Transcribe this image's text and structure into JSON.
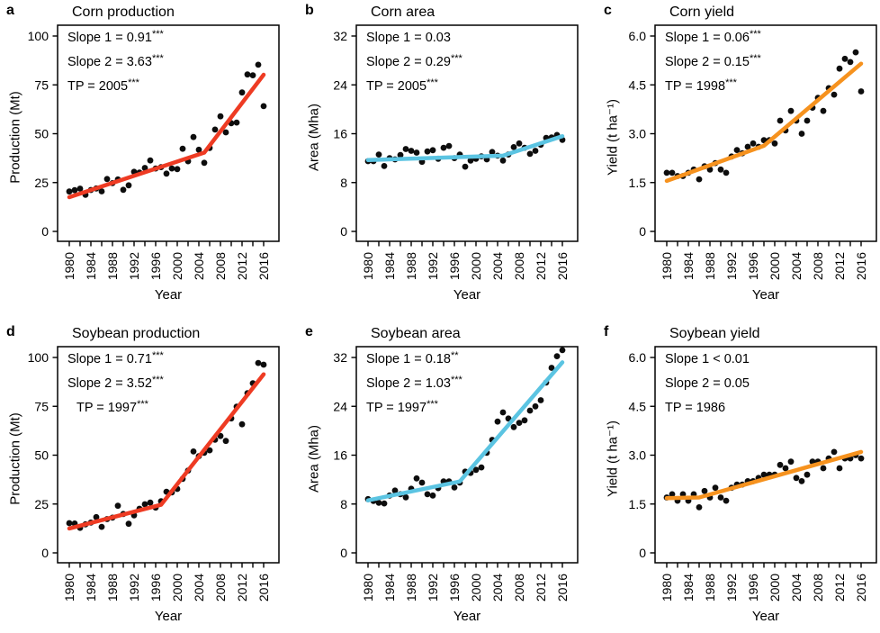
{
  "years": [
    1980,
    1981,
    1982,
    1983,
    1984,
    1985,
    1986,
    1987,
    1988,
    1989,
    1990,
    1991,
    1992,
    1993,
    1994,
    1995,
    1996,
    1997,
    1998,
    1999,
    2000,
    2001,
    2002,
    2003,
    2004,
    2005,
    2006,
    2007,
    2008,
    2009,
    2010,
    2011,
    2012,
    2013,
    2014,
    2015,
    2016
  ],
  "x_axis": {
    "label": "Year",
    "labeled_ticks": [
      1980,
      1984,
      1988,
      1992,
      1996,
      2000,
      2004,
      2008,
      2012,
      2016
    ],
    "minor_tick_step": 2,
    "xlim": [
      1980,
      2016
    ]
  },
  "colors": {
    "point": "#0d0d0d",
    "production_line": "#ee3b23",
    "area_line": "#5bc4e2",
    "yield_line": "#f6921e",
    "axis": "#000000"
  },
  "chart_data": [
    {
      "panel": "a",
      "type": "scatter",
      "title": "Corn production",
      "ylabel": "Production (Mt)",
      "xlabel": "Year",
      "ymax": 100,
      "yticks": [
        "0",
        "25",
        "50",
        "75",
        "100"
      ],
      "line_color": "#ee3b23",
      "annotations": [
        {
          "text": "Slope 1 = 0.91",
          "stars": "***",
          "indent": 0
        },
        {
          "text": "Slope 2 = 3.63",
          "stars": "***",
          "indent": 0
        },
        {
          "text": "TP = 2005",
          "stars": "***",
          "indent": 0
        }
      ],
      "trend": [
        [
          1980,
          17.5
        ],
        [
          2005,
          40.3
        ],
        [
          2016,
          80.2
        ]
      ],
      "values": [
        20.4,
        21.1,
        21.9,
        18.7,
        21.2,
        22.0,
        20.5,
        26.8,
        24.7,
        26.6,
        21.3,
        23.6,
        30.5,
        30.1,
        32.5,
        36.3,
        32.2,
        32.9,
        29.6,
        32.2,
        31.9,
        42.3,
        35.9,
        48.3,
        41.8,
        35.1,
        42.7,
        52.1,
        58.9,
        50.7,
        55.4,
        55.7,
        71.1,
        80.3,
        79.9,
        85.3,
        64.1
      ]
    },
    {
      "panel": "b",
      "type": "scatter",
      "title": "Corn area",
      "ylabel": "Area (Mha)",
      "xlabel": "Year",
      "ymax": 32,
      "yticks": [
        "0",
        "8",
        "16",
        "24",
        "32"
      ],
      "line_color": "#5bc4e2",
      "annotations": [
        {
          "text": "Slope 1 = 0.03",
          "stars": "",
          "indent": 0
        },
        {
          "text": "Slope 2 = 0.29",
          "stars": "***",
          "indent": 0
        },
        {
          "text": "TP = 2005",
          "stars": "***",
          "indent": 0
        }
      ],
      "trend": [
        [
          1980,
          11.7
        ],
        [
          2005,
          12.4
        ],
        [
          2016,
          15.6
        ]
      ],
      "values": [
        11.5,
        11.5,
        12.6,
        10.7,
        12.0,
        11.8,
        12.5,
        13.5,
        13.2,
        12.9,
        11.4,
        13.1,
        13.3,
        11.9,
        13.7,
        14.0,
        12.0,
        12.6,
        10.6,
        11.6,
        11.9,
        12.3,
        11.8,
        13.0,
        12.4,
        11.6,
        12.6,
        13.8,
        14.4,
        13.7,
        12.7,
        13.2,
        14.2,
        15.3,
        15.4,
        15.8,
        15.0
      ]
    },
    {
      "panel": "c",
      "type": "scatter",
      "title": "Corn yield",
      "ylabel": "Yield (t ha⁻¹)",
      "xlabel": "Year",
      "ymax": 6.0,
      "yticks": [
        "0",
        "1.5",
        "3.0",
        "4.5",
        "6.0"
      ],
      "line_color": "#f6921e",
      "annotations": [
        {
          "text": "Slope 1 = 0.06",
          "stars": "***",
          "indent": 0
        },
        {
          "text": "Slope 2 = 0.15",
          "stars": "***",
          "indent": 0
        },
        {
          "text": "TP = 1998",
          "stars": "***",
          "indent": 0
        }
      ],
      "trend": [
        [
          1980,
          1.55
        ],
        [
          1998,
          2.63
        ],
        [
          2016,
          5.15
        ]
      ],
      "values": [
        1.8,
        1.8,
        1.7,
        1.7,
        1.8,
        1.9,
        1.6,
        2.0,
        1.9,
        2.1,
        1.9,
        1.8,
        2.3,
        2.5,
        2.4,
        2.6,
        2.7,
        2.6,
        2.8,
        2.8,
        2.7,
        3.4,
        3.1,
        3.7,
        3.4,
        3.0,
        3.4,
        3.8,
        4.1,
        3.7,
        4.4,
        4.2,
        5.0,
        5.3,
        5.2,
        5.5,
        4.3
      ]
    },
    {
      "panel": "d",
      "type": "scatter",
      "title": "Soybean production",
      "ylabel": "Production (Mt)",
      "xlabel": "Year",
      "ymax": 100,
      "yticks": [
        "0",
        "25",
        "50",
        "75",
        "100"
      ],
      "line_color": "#ee3b23",
      "annotations": [
        {
          "text": "Slope 1 = 0.71",
          "stars": "***",
          "indent": 0
        },
        {
          "text": "Slope 2 = 3.52",
          "stars": "***",
          "indent": 0
        },
        {
          "text": "TP = 1997",
          "stars": "***",
          "indent": 10
        }
      ],
      "trend": [
        [
          1980,
          12.5
        ],
        [
          1997,
          24.6
        ],
        [
          2016,
          91.4
        ]
      ],
      "values": [
        15.2,
        15.0,
        12.8,
        14.6,
        15.5,
        18.3,
        13.3,
        17.3,
        18.0,
        24.1,
        19.9,
        14.9,
        19.2,
        22.6,
        24.9,
        25.7,
        23.2,
        26.4,
        31.3,
        30.9,
        32.7,
        37.9,
        42.1,
        51.9,
        49.5,
        51.2,
        52.5,
        57.9,
        59.8,
        57.3,
        68.8,
        74.8,
        65.8,
        81.7,
        86.8,
        97.2,
        96.3
      ]
    },
    {
      "panel": "e",
      "type": "scatter",
      "title": "Soybean area",
      "ylabel": "Area (Mha)",
      "xlabel": "Year",
      "ymax": 32,
      "yticks": [
        "0",
        "8",
        "16",
        "24",
        "32"
      ],
      "line_color": "#5bc4e2",
      "annotations": [
        {
          "text": "Slope 1 = 0.18",
          "stars": "**",
          "indent": 0
        },
        {
          "text": "Slope 2 = 1.03",
          "stars": "***",
          "indent": 0
        },
        {
          "text": "TP = 1997",
          "stars": "***",
          "indent": 0
        }
      ],
      "trend": [
        [
          1980,
          8.6
        ],
        [
          1997,
          11.7
        ],
        [
          2016,
          31.2
        ]
      ],
      "values": [
        8.8,
        8.5,
        8.2,
        8.1,
        9.4,
        10.2,
        9.6,
        9.1,
        10.5,
        12.2,
        11.5,
        9.6,
        9.4,
        10.6,
        11.7,
        11.7,
        10.7,
        11.5,
        13.3,
        13.1,
        13.6,
        14.0,
        16.4,
        18.5,
        21.5,
        23.0,
        22.0,
        20.6,
        21.3,
        21.7,
        23.3,
        24.0,
        25.0,
        27.9,
        30.3,
        32.2,
        33.2
      ]
    },
    {
      "panel": "f",
      "type": "scatter",
      "title": "Soybean yield",
      "ylabel": "Yield (t ha⁻¹)",
      "xlabel": "Year",
      "ymax": 6.0,
      "yticks": [
        "0",
        "1.5",
        "3.0",
        "4.5",
        "6.0"
      ],
      "line_color": "#f6921e",
      "annotations": [
        {
          "text": "Slope 1 < 0.01",
          "stars": "",
          "indent": 0
        },
        {
          "text": "Slope 2 = 0.05",
          "stars": "",
          "indent": 0
        },
        {
          "text": "TP = 1986",
          "stars": "",
          "indent": 0
        }
      ],
      "trend": [
        [
          1980,
          1.68
        ],
        [
          1986,
          1.7
        ],
        [
          2016,
          3.1
        ]
      ],
      "values": [
        1.7,
        1.8,
        1.6,
        1.8,
        1.6,
        1.8,
        1.4,
        1.9,
        1.7,
        2.0,
        1.7,
        1.6,
        2.0,
        2.1,
        2.1,
        2.2,
        2.2,
        2.3,
        2.4,
        2.4,
        2.4,
        2.7,
        2.6,
        2.8,
        2.3,
        2.2,
        2.4,
        2.8,
        2.8,
        2.6,
        2.9,
        3.1,
        2.6,
        2.9,
        2.9,
        3.0,
        2.9
      ]
    }
  ]
}
